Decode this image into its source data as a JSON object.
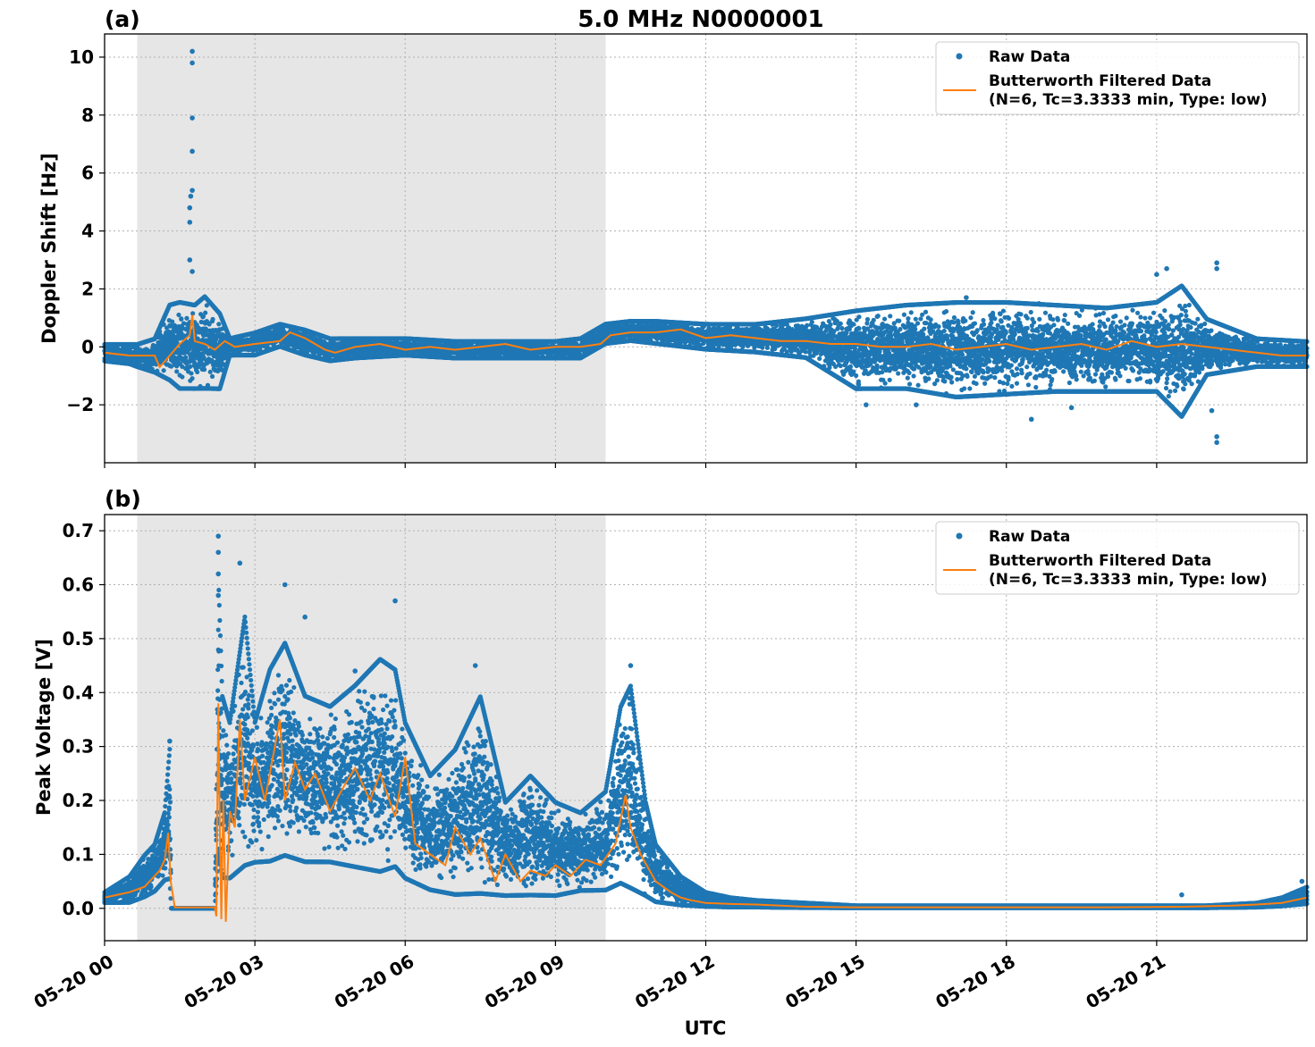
{
  "chart_data": {
    "type": "scatter",
    "title": "5.0 MHz N0000001",
    "xlabel": "UTC",
    "x_range": [
      "05-20 00:00",
      "05-21 00:00"
    ],
    "x_ticks": [
      "05-20 00",
      "05-20 03",
      "05-20 06",
      "05-20 09",
      "05-20 12",
      "05-20 15",
      "05-20 18",
      "05-20 21"
    ],
    "shaded_region_hours": [
      0.65,
      10.0
    ],
    "shade_color": "#e6e6e6",
    "grid": true,
    "legend_position": "top-right",
    "legend": {
      "raw": "Raw Data",
      "filtered_line1": "Butterworth Filtered Data",
      "filtered_line2": "(N=6, Tc=3.3333 min, Type: low)"
    },
    "colors": {
      "raw": "#1f77b4",
      "filtered": "#ff7f0e"
    },
    "panels": [
      {
        "label": "(a)",
        "ylabel": "Doppler Shift [Hz]",
        "ylim": [
          -4.0,
          10.8
        ],
        "yticks": [
          -2,
          0,
          2,
          4,
          6,
          8,
          10
        ],
        "ytick_labels": [
          "−2",
          "0",
          "2",
          "4",
          "6",
          "8",
          "10"
        ],
        "raw_envelope": {
          "hours": [
            0,
            0.5,
            0.65,
            1.0,
            1.3,
            1.5,
            1.8,
            2.0,
            2.3,
            2.5,
            3.0,
            3.5,
            4.0,
            4.5,
            5.0,
            6.0,
            7.0,
            8.0,
            9.0,
            9.5,
            10.0,
            10.5,
            11.0,
            12.0,
            13.0,
            14.0,
            15.0,
            16.0,
            17.0,
            18.0,
            19.0,
            20.0,
            21.0,
            21.5,
            22.0,
            23.0,
            24.0
          ],
          "upper": [
            0.1,
            0.1,
            0.1,
            0.3,
            1.5,
            1.6,
            1.5,
            1.8,
            1.2,
            0.3,
            0.5,
            0.8,
            0.6,
            0.3,
            0.3,
            0.3,
            0.2,
            0.2,
            0.2,
            0.3,
            0.8,
            0.9,
            0.9,
            0.8,
            0.8,
            1.0,
            1.3,
            1.5,
            1.6,
            1.6,
            1.5,
            1.4,
            1.6,
            2.2,
            1.0,
            0.3,
            0.2
          ],
          "lower": [
            -0.5,
            -0.6,
            -0.7,
            -0.9,
            -1.2,
            -1.5,
            -1.5,
            -1.5,
            -1.5,
            -0.3,
            -0.3,
            0.0,
            -0.3,
            -0.5,
            -0.4,
            -0.3,
            -0.4,
            -0.4,
            -0.4,
            -0.4,
            0.1,
            0.2,
            0.1,
            -0.1,
            -0.2,
            -0.4,
            -1.5,
            -1.5,
            -1.8,
            -1.7,
            -1.6,
            -1.6,
            -1.6,
            -2.5,
            -1.0,
            -0.7,
            -0.7
          ]
        },
        "outliers": [
          [
            1.75,
            10.2
          ],
          [
            1.75,
            9.8
          ],
          [
            1.75,
            7.9
          ],
          [
            1.75,
            6.75
          ],
          [
            1.75,
            5.4
          ],
          [
            1.72,
            5.2
          ],
          [
            1.7,
            4.8
          ],
          [
            1.7,
            4.3
          ],
          [
            1.7,
            3.0
          ],
          [
            1.75,
            2.6
          ],
          [
            15.05,
            -1.3
          ],
          [
            15.2,
            -2.0
          ],
          [
            18.5,
            -2.5
          ],
          [
            19.3,
            -2.1
          ],
          [
            21.0,
            2.5
          ],
          [
            21.2,
            2.7
          ],
          [
            22.2,
            2.9
          ],
          [
            22.2,
            2.7
          ],
          [
            22.1,
            -2.2
          ],
          [
            22.2,
            -3.3
          ],
          [
            22.2,
            -3.1
          ],
          [
            16.2,
            -2.0
          ],
          [
            17.2,
            1.7
          ]
        ],
        "filtered": {
          "hours": [
            0,
            0.5,
            1.0,
            1.1,
            1.3,
            1.5,
            1.7,
            1.75,
            1.8,
            2.0,
            2.2,
            2.4,
            2.6,
            3.0,
            3.5,
            3.7,
            4.0,
            4.4,
            4.6,
            5.0,
            5.5,
            6.0,
            6.5,
            7.0,
            7.5,
            8.0,
            8.5,
            9.0,
            9.5,
            9.9,
            10.1,
            10.5,
            11.0,
            11.5,
            12.0,
            12.5,
            13.0,
            13.5,
            14.0,
            14.5,
            15.0,
            15.5,
            16.0,
            16.5,
            17.0,
            17.5,
            18.0,
            18.5,
            19.0,
            19.5,
            20.0,
            20.5,
            21.0,
            21.5,
            22.0,
            22.5,
            23.0,
            23.5,
            24.0
          ],
          "values": [
            -0.2,
            -0.3,
            -0.3,
            -0.7,
            -0.3,
            0.1,
            0.4,
            1.1,
            0.2,
            0.1,
            -0.1,
            0.2,
            0.0,
            0.1,
            0.2,
            0.5,
            0.3,
            -0.1,
            -0.2,
            0.0,
            0.1,
            -0.1,
            0.0,
            -0.1,
            0.0,
            0.1,
            -0.1,
            0.0,
            0.0,
            0.1,
            0.4,
            0.5,
            0.5,
            0.6,
            0.3,
            0.4,
            0.3,
            0.2,
            0.2,
            0.1,
            0.1,
            0.0,
            0.0,
            0.1,
            -0.1,
            0.0,
            0.1,
            -0.1,
            0.0,
            0.1,
            -0.1,
            0.2,
            0.0,
            0.1,
            0.0,
            -0.1,
            -0.2,
            -0.3,
            -0.3
          ]
        }
      },
      {
        "label": "(b)",
        "ylabel": "Peak Voltage [V]",
        "ylim": [
          -0.06,
          0.73
        ],
        "yticks": [
          0.0,
          0.1,
          0.2,
          0.3,
          0.4,
          0.5,
          0.6,
          0.7
        ],
        "ytick_labels": [
          "0.0",
          "0.1",
          "0.2",
          "0.3",
          "0.4",
          "0.5",
          "0.6",
          "0.7"
        ],
        "raw_envelope": {
          "hours": [
            0,
            0.5,
            0.8,
            1.0,
            1.2,
            1.3,
            1.33,
            2.2,
            2.28,
            2.35,
            2.5,
            2.8,
            3.0,
            3.3,
            3.6,
            4.0,
            4.5,
            5.0,
            5.5,
            5.8,
            6.0,
            6.5,
            7.0,
            7.5,
            8.0,
            8.5,
            9.0,
            9.5,
            10.0,
            10.3,
            10.5,
            10.8,
            11.0,
            11.5,
            12.0,
            12.5,
            13.0,
            14.0,
            15.0,
            18.0,
            21.0,
            22.0,
            23.0,
            23.5,
            24.0
          ],
          "upper": [
            0.03,
            0.06,
            0.1,
            0.12,
            0.18,
            0.3,
            0.0,
            0.0,
            0.6,
            0.4,
            0.35,
            0.55,
            0.35,
            0.45,
            0.5,
            0.4,
            0.38,
            0.42,
            0.47,
            0.45,
            0.35,
            0.25,
            0.3,
            0.4,
            0.2,
            0.25,
            0.2,
            0.18,
            0.22,
            0.38,
            0.42,
            0.2,
            0.12,
            0.06,
            0.03,
            0.02,
            0.015,
            0.01,
            0.005,
            0.005,
            0.005,
            0.005,
            0.01,
            0.02,
            0.04
          ],
          "lower": [
            0.01,
            0.01,
            0.02,
            0.03,
            0.05,
            0.05,
            0.0,
            0.0,
            0.1,
            0.05,
            0.05,
            0.07,
            0.08,
            0.08,
            0.09,
            0.08,
            0.08,
            0.07,
            0.06,
            0.07,
            0.05,
            0.03,
            0.02,
            0.02,
            0.02,
            0.02,
            0.02,
            0.03,
            0.03,
            0.04,
            0.03,
            0.02,
            0.01,
            0.005,
            0.003,
            0.002,
            0.002,
            0.001,
            0.001,
            0.001,
            0.001,
            0.001,
            0.002,
            0.004,
            0.008
          ]
        },
        "outliers": [
          [
            2.27,
            0.69
          ],
          [
            2.27,
            0.66
          ],
          [
            2.27,
            0.62
          ],
          [
            2.27,
            0.58
          ],
          [
            2.7,
            0.64
          ],
          [
            3.6,
            0.6
          ],
          [
            4.0,
            0.54
          ],
          [
            5.0,
            0.44
          ],
          [
            5.8,
            0.57
          ],
          [
            7.4,
            0.45
          ],
          [
            10.5,
            0.45
          ],
          [
            1.3,
            0.31
          ],
          [
            21.5,
            0.025
          ],
          [
            23.9,
            0.05
          ]
        ],
        "filtered": {
          "hours": [
            0,
            0.5,
            0.8,
            1.0,
            1.1,
            1.2,
            1.27,
            1.32,
            1.4,
            2.2,
            2.23,
            2.27,
            2.3,
            2.33,
            2.37,
            2.42,
            2.5,
            2.6,
            2.7,
            2.8,
            3.0,
            3.2,
            3.5,
            3.6,
            3.8,
            4.0,
            4.2,
            4.5,
            4.8,
            5.0,
            5.3,
            5.5,
            5.8,
            6.0,
            6.2,
            6.5,
            6.8,
            7.0,
            7.3,
            7.5,
            7.8,
            8.0,
            8.3,
            8.5,
            8.8,
            9.0,
            9.3,
            9.6,
            9.9,
            10.2,
            10.4,
            10.5,
            10.7,
            11.0,
            11.3,
            11.5,
            11.7,
            12.0,
            12.5,
            13.0,
            13.5,
            14.0,
            15.0,
            17.0,
            20.0,
            21.5,
            22.0,
            22.5,
            23.0,
            23.5,
            24.0
          ],
          "values": [
            0.02,
            0.03,
            0.04,
            0.06,
            0.07,
            0.09,
            0.14,
            0.05,
            0.002,
            0.002,
            -0.015,
            0.38,
            0.15,
            -0.02,
            0.2,
            -0.025,
            0.18,
            0.15,
            0.35,
            0.2,
            0.28,
            0.2,
            0.35,
            0.2,
            0.27,
            0.22,
            0.25,
            0.18,
            0.23,
            0.26,
            0.2,
            0.25,
            0.17,
            0.28,
            0.12,
            0.1,
            0.08,
            0.15,
            0.1,
            0.13,
            0.05,
            0.1,
            0.05,
            0.07,
            0.06,
            0.08,
            0.06,
            0.09,
            0.08,
            0.12,
            0.21,
            0.15,
            0.1,
            0.05,
            0.03,
            0.02,
            0.015,
            0.01,
            0.008,
            0.007,
            0.005,
            0.003,
            0.002,
            0.002,
            0.002,
            0.003,
            0.004,
            0.005,
            0.007,
            0.01,
            0.02
          ]
        }
      }
    ]
  }
}
